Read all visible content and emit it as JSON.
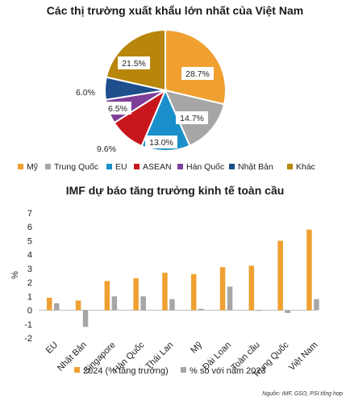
{
  "source_note": "Nguồn: IMF, GSO, PSI tổng hợp",
  "chart_data": [
    {
      "type": "pie",
      "title": "Các thị trường xuất khẩu lớn nhất của Việt Nam",
      "slices": [
        {
          "name": "Mỹ",
          "value": 28.7,
          "label": "28.7%",
          "color": "#F0A030"
        },
        {
          "name": "Trung Quốc",
          "value": 14.7,
          "label": "14.7%",
          "color": "#A6A6A6"
        },
        {
          "name": "EU",
          "value": 13.0,
          "label": "13.0%",
          "color": "#1A8FC9"
        },
        {
          "name": "ASEAN",
          "value": 9.6,
          "label": "9.6%",
          "color": "#C8161D"
        },
        {
          "name": "Hàn Quốc",
          "value": 6.5,
          "label": "6.5%",
          "color": "#7E3F98"
        },
        {
          "name": "Nhật Bản",
          "value": 6.0,
          "label": "6.0%",
          "color": "#1F4E8C"
        },
        {
          "name": "Khác",
          "value": 21.5,
          "label": "21.5%",
          "color": "#B8860B"
        }
      ],
      "legend_position": "bottom"
    },
    {
      "type": "bar",
      "title": "IMF dự báo tăng trưởng kinh tế toàn cầu",
      "ylabel": "%",
      "ylim": [
        -2,
        7
      ],
      "yticks": [
        "-2",
        "-1",
        "0",
        "1",
        "2",
        "3",
        "4",
        "5",
        "6",
        "7"
      ],
      "categories": [
        "EU",
        "Nhật Bản",
        "Singapore",
        "Hàn Quốc",
        "Thái Lan",
        "Mỹ",
        "Đài Loan",
        "Toàn cầu",
        "Trung Quốc",
        "Việt Nam"
      ],
      "series": [
        {
          "name": "2024 (% tăng trưởng)",
          "color": "#F0A030",
          "values": [
            0.9,
            0.7,
            2.1,
            2.3,
            2.7,
            2.6,
            3.1,
            3.2,
            5.0,
            5.8
          ]
        },
        {
          "name": "% so với năm 2023",
          "color": "#A6A6A6",
          "values": [
            0.5,
            -1.2,
            1.0,
            1.0,
            0.8,
            0.1,
            1.7,
            0.0,
            -0.2,
            0.8
          ]
        }
      ],
      "legend_position": "bottom"
    }
  ]
}
